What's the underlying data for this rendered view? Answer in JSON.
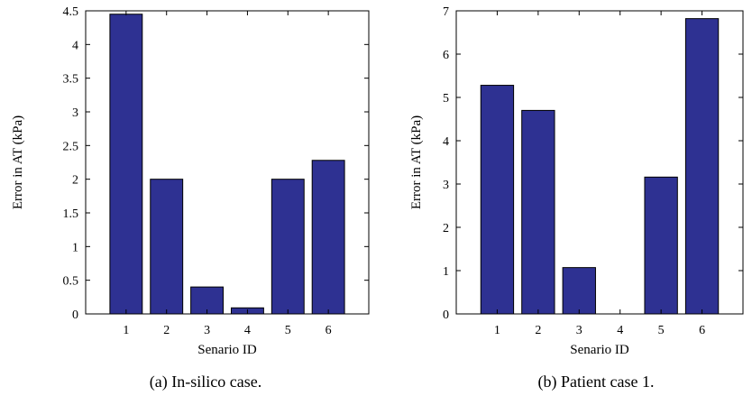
{
  "figure": {
    "captions": [
      "(a)  In-silico case.",
      "(b)  Patient case 1."
    ]
  },
  "chart_data": [
    {
      "type": "bar",
      "categories": [
        "1",
        "2",
        "3",
        "4",
        "5",
        "6"
      ],
      "values": [
        4.45,
        2.0,
        0.4,
        0.09,
        2.0,
        2.28
      ],
      "xlabel": "Senario ID",
      "ylabel": "Error in AT (kPa)",
      "ylim": [
        0,
        4.5
      ],
      "yticks": [
        "0",
        "0.5",
        "1",
        "1.5",
        "2",
        "2.5",
        "3",
        "3.5",
        "4",
        "4.5"
      ],
      "bar_color": "#2e3192",
      "grid": false
    },
    {
      "type": "bar",
      "categories": [
        "1",
        "2",
        "3",
        "4",
        "5",
        "6"
      ],
      "values": [
        5.28,
        4.7,
        1.07,
        0,
        3.16,
        6.82
      ],
      "xlabel": "Senario ID",
      "ylabel": "Error in AT (kPa)",
      "ylim": [
        0,
        7
      ],
      "yticks": [
        "0",
        "1",
        "2",
        "3",
        "4",
        "5",
        "6",
        "7"
      ],
      "bar_color": "#2e3192",
      "grid": false
    }
  ]
}
